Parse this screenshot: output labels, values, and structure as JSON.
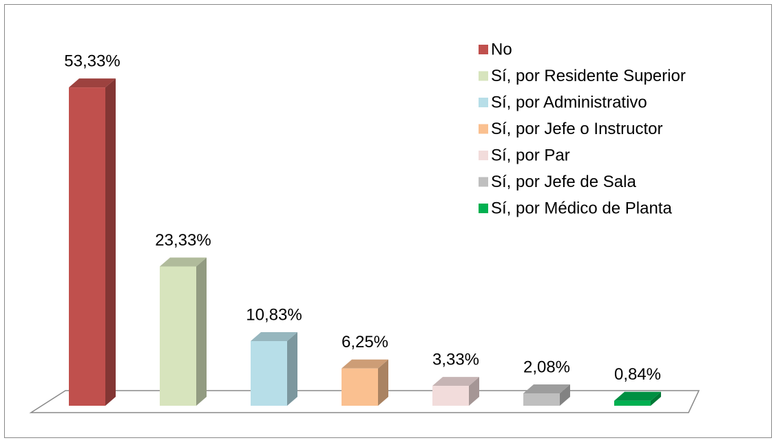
{
  "chart_data": {
    "type": "bar3d",
    "categories": [
      "No",
      "Sí, por Residente Superior",
      "Sí, por Administrativo",
      "Sí, por Jefe o Instructor",
      "Sí, por Par",
      "Sí, por Jefe de Sala",
      "Sí, por Médico de Planta"
    ],
    "values": [
      53.33,
      23.33,
      10.83,
      6.25,
      3.33,
      2.08,
      0.84
    ],
    "value_labels": [
      "53,33%",
      "23,33%",
      "10,83%",
      "6,25%",
      "3,33%",
      "2,08%",
      "0,84%"
    ],
    "colors": [
      "#c0504d",
      "#d7e4bd",
      "#b7dee8",
      "#fac090",
      "#f2dcdb",
      "#bfbfbf",
      "#00b050"
    ],
    "legend": "top-right"
  }
}
